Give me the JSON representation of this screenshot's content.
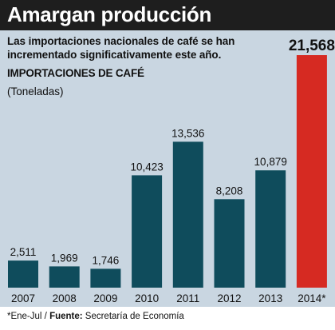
{
  "header": {
    "title": "Amargan producción",
    "subtitle": "Las importaciones nacionales de café se han incrementado significativamente este año."
  },
  "chart_data": {
    "type": "bar",
    "title": "IMPORTACIONES DE CAFÉ",
    "ylabel": "IMPORTACIONES DE CAFÉ",
    "units": "(Toneladas)",
    "xlabel": "",
    "categories": [
      "2007",
      "2008",
      "2009",
      "2010",
      "2011",
      "2012",
      "2013",
      "2014*"
    ],
    "values": [
      2511,
      1969,
      1746,
      10423,
      13536,
      8208,
      10879,
      21568
    ],
    "value_labels": [
      "2,511",
      "1,969",
      "1,746",
      "10,423",
      "13,536",
      "8,208",
      "10,879",
      "21,568"
    ],
    "ylim": [
      0,
      21568
    ],
    "grid": false,
    "colors": {
      "default_bar": "#0f4c5c",
      "highlight_bar": "#d62a22",
      "background": "#c9d6e1"
    },
    "highlight_index": 7
  },
  "footnote": {
    "note": "*Ene-Jul / ",
    "source_label": "Fuente:",
    "source": " Secretaría de Economía"
  }
}
